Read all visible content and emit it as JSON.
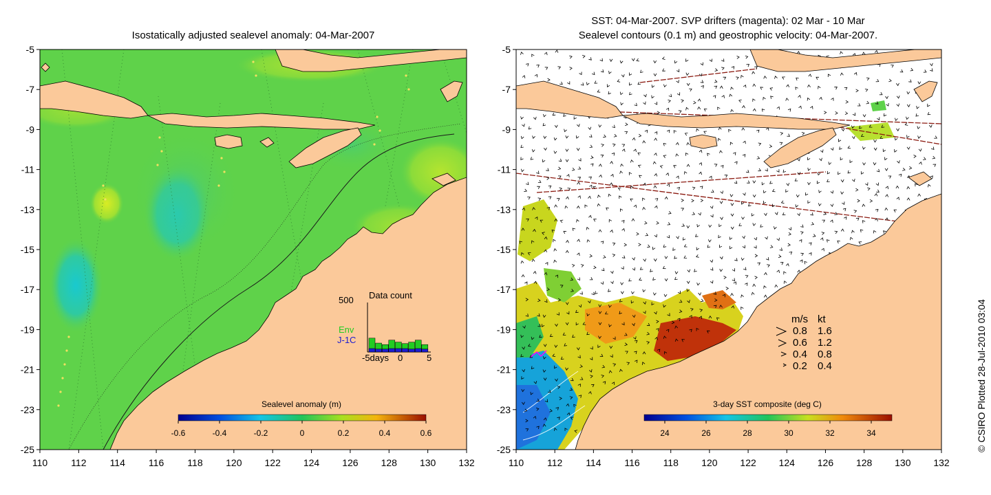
{
  "left_panel": {
    "title": "Isostatically adjusted sealevel anomaly: 04-Mar-2007",
    "x_ticks": [
      "110",
      "112",
      "114",
      "116",
      "118",
      "120",
      "122",
      "124",
      "126",
      "128",
      "130",
      "132"
    ],
    "y_ticks": [
      "-5",
      "-7",
      "-9",
      "-11",
      "-13",
      "-15",
      "-17",
      "-19",
      "-21",
      "-23",
      "-25"
    ],
    "colorbar": {
      "title": "Sealevel anomaly (m)",
      "ticks": [
        "-0.6",
        "-0.4",
        "-0.2",
        "0",
        "0.2",
        "0.4",
        "0.6"
      ],
      "range": [
        -0.6,
        0.6
      ]
    },
    "inset": {
      "title": "Data count",
      "y_max_label": "500",
      "series_labels": [
        "Env",
        "J-1C"
      ],
      "x_labels": [
        "-5days",
        "0",
        "5"
      ],
      "env_colour": "#22cc22",
      "j1c_colour": "#1c1cd0"
    }
  },
  "right_panel": {
    "title_line1": "SST: 04-Mar-2007. SVP drifters (magenta): 02 Mar - 10 Mar",
    "title_line2": "Sealevel contours (0.1 m) and geostrophic velocity: 04-Mar-2007.",
    "x_ticks": [
      "110",
      "112",
      "114",
      "116",
      "118",
      "120",
      "122",
      "124",
      "126",
      "128",
      "130",
      "132"
    ],
    "y_ticks": [
      "-5",
      "-7",
      "-9",
      "-11",
      "-13",
      "-15",
      "-17",
      "-19",
      "-21",
      "-23",
      "-25"
    ],
    "colorbar": {
      "title": "3-day SST composite (deg C)",
      "ticks": [
        "24",
        "26",
        "28",
        "30",
        "32",
        "34"
      ],
      "range": [
        23,
        35
      ]
    },
    "velocity_legend": {
      "header_ms": "m/s",
      "header_kt": "kt",
      "rows": [
        {
          "ms": "0.8",
          "kt": "1.6"
        },
        {
          "ms": "0.6",
          "kt": "1.2"
        },
        {
          "ms": "0.4",
          "kt": "0.8"
        },
        {
          "ms": "0.2",
          "kt": "0.4"
        }
      ]
    }
  },
  "credit": "© CSIRO Plotted 28-Jul-2010 03:04",
  "colors": {
    "land": "#fbc99a",
    "ocean_green": "#5fd24a",
    "anomaly_low": "#1cc6c6",
    "anomaly_high": "#e8ef2c",
    "track_line": "#333333",
    "drifter": "#ff00ff",
    "altimeter_track": "#8b1a10"
  }
}
